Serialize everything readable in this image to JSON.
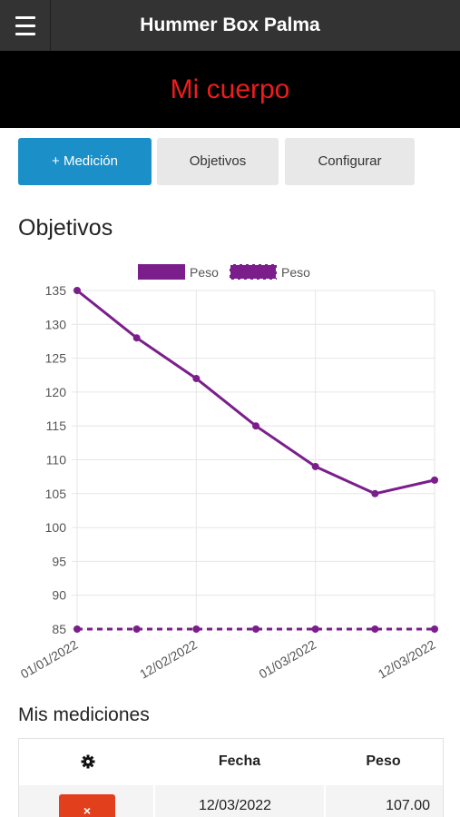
{
  "header": {
    "menu_icon": "hamburger-menu-icon",
    "title": "Hummer Box Palma"
  },
  "banner": {
    "title": "Mi cuerpo",
    "color": "#ee1c1c"
  },
  "actions": {
    "add_label": "+ Medición",
    "objectives_label": "Objetivos",
    "configure_label": "Configurar",
    "primary_color": "#1a8fc8"
  },
  "objectives_section": {
    "title": "Objetivos"
  },
  "chart_data": {
    "type": "line",
    "legend_position": "top",
    "grid": true,
    "x": [
      "01/01/2022",
      "",
      "12/02/2022",
      "",
      "01/03/2022",
      "",
      "12/03/2022"
    ],
    "ylim": [
      85,
      135
    ],
    "yticks": [
      135,
      130,
      125,
      120,
      115,
      110,
      105,
      100,
      95,
      90,
      85
    ],
    "series": [
      {
        "name": "Peso",
        "style": "solid",
        "color": "#7b1e8c",
        "values": [
          135,
          128,
          122,
          115,
          109,
          105,
          107
        ]
      },
      {
        "name": "Peso",
        "style": "dashed",
        "color": "#7b1e8c",
        "values": [
          85,
          85,
          85,
          85,
          85,
          85,
          85
        ]
      }
    ]
  },
  "measurements": {
    "title": "Mis mediciones",
    "settings_icon": "gear-icon",
    "columns": [
      "Fecha",
      "Peso"
    ],
    "rows": [
      {
        "delete_icon": "close-icon",
        "delete_label": "×",
        "date": "12/03/2022",
        "weight": "107.00"
      }
    ]
  }
}
